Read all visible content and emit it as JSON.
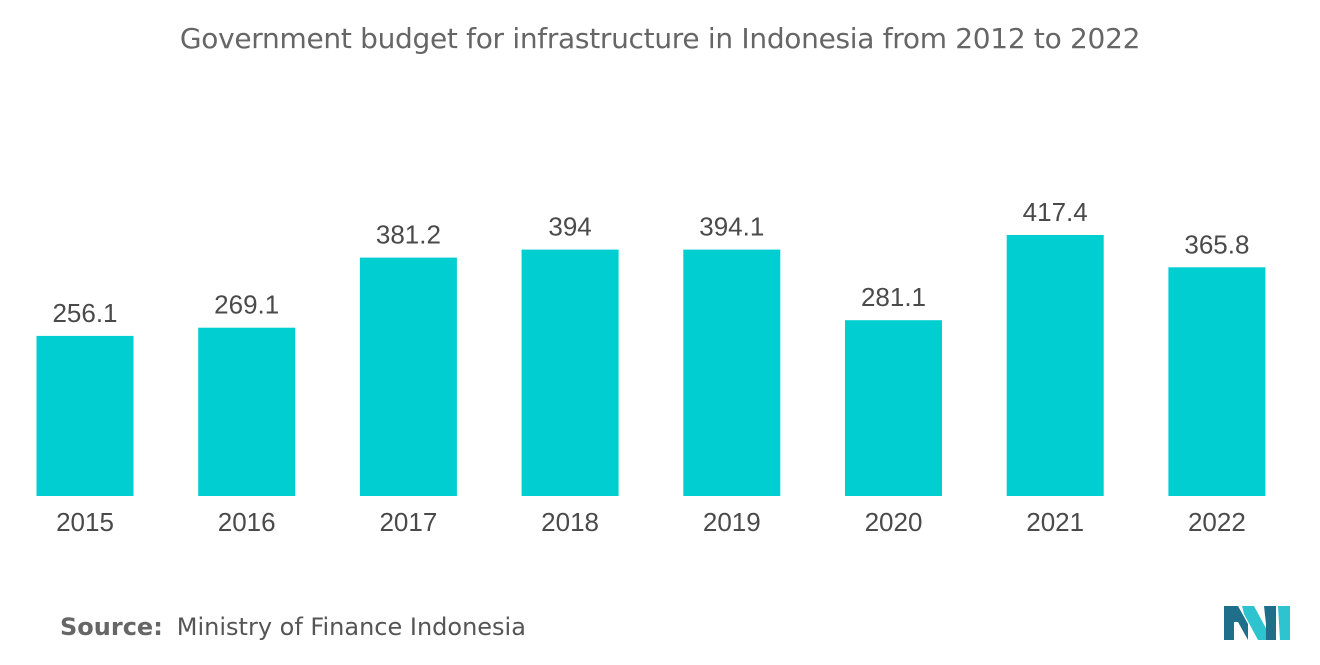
{
  "title": "Government budget for infrastructure in Indonesia from 2012 to 2022",
  "source": {
    "label": "Source:",
    "text": "Ministry of Finance Indonesia"
  },
  "colors": {
    "bar": "#00CED1",
    "logo_dark": "#1f6f8b",
    "logo_light": "#2ec4cf"
  },
  "logo": {
    "icon": "mordor-logo-icon"
  },
  "chart_data": {
    "type": "bar",
    "title": "Government budget for infrastructure in Indonesia from 2012 to 2022",
    "xlabel": "",
    "ylabel": "",
    "categories": [
      "2015",
      "2016",
      "2017",
      "2018",
      "2019",
      "2020",
      "2021",
      "2022"
    ],
    "values": [
      256.1,
      269.1,
      381.2,
      394,
      394.1,
      281.1,
      417.4,
      365.8
    ],
    "value_labels": [
      "256.1",
      "269.1",
      "381.2",
      "394",
      "394.1",
      "281.1",
      "417.4",
      "365.8"
    ],
    "ylim": [
      0,
      417.4
    ],
    "grid": false,
    "legend": "none",
    "data_labels": true
  }
}
